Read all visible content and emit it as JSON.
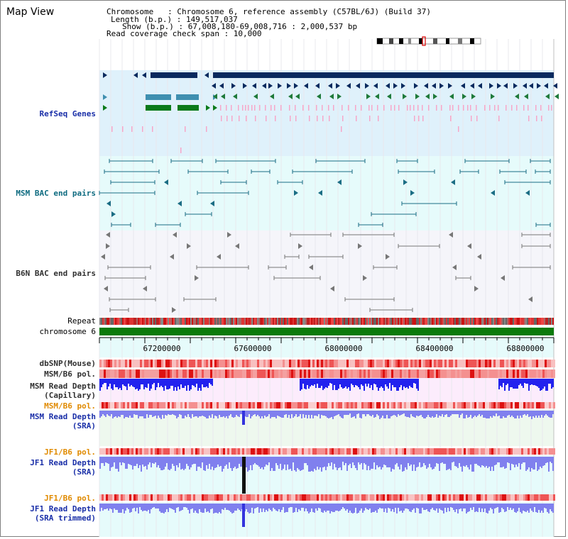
{
  "title": "Map View",
  "info": {
    "chromosome_line": "Chromosome   : Chromosome 6, reference assembly (C57BL/6J) (Build 37)",
    "length_line": "Length (b.p.) : 149,517,037",
    "show_line": "Show (b.p.) : 67,008,180-69,008,716 : 2,000,537 bp",
    "coverage_line": "Read coverage check span : 10,000"
  },
  "tracks": {
    "refseq": "RefSeq Genes",
    "msm_bac": "MSM BAC end pairs",
    "b6n_bac": "B6N BAC end pairs",
    "repeat": "Repeat",
    "chromosome": "chromosome 6",
    "dbsnp": "dbSNP(Mouse)",
    "msm_pol": "MSM/B6 pol.",
    "msm_depth_cap": "MSM Read Depth\n(Capillary)",
    "msm_pol2": "MSM/B6 pol.",
    "msm_depth_sra": "MSM Read Depth\n(SRA)",
    "jf1_pol": "JF1/B6 pol.",
    "jf1_depth_sra": "JF1 Read Depth\n(SRA)",
    "jf1_pol2": "JF1/B6 pol.",
    "jf1_depth_trim": "JF1 Read Depth\n(SRA trimmed)"
  },
  "axis": {
    "ticks": [
      "67200000",
      "67600000",
      "68000000",
      "68400000",
      "68800000"
    ]
  },
  "colors": {
    "refseq_bg": "#dff1fb",
    "bac_bg": "#e6fbfb",
    "b6n_bg": "#f5f5fa",
    "gene_navy": "#0a2a5e",
    "gene_teal": "#3f8fb0",
    "gene_green": "#0b7a1a",
    "gene_pink": "#f7a6c8",
    "msm_line": "#1b6d84",
    "b6n_line": "#777777",
    "chrom_green": "#0b7a0b",
    "depth_blue": "#2222ee",
    "depth_lightblue": "#8080ee",
    "pol_red": "#ee3333"
  }
}
